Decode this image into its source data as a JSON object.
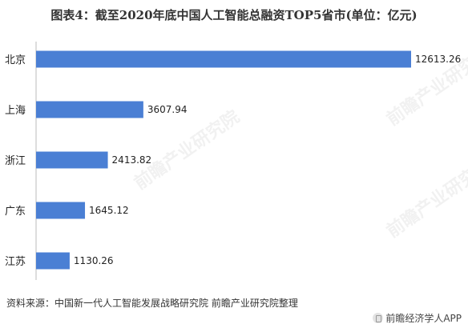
{
  "title": "图表4：截至2020年底中国人工智能总融资TOP5省市(单位：亿元)",
  "source": "资料来源：中国新一代人工智能发展战略研究院 前瞻产业研究院整理",
  "brand": "前瞻经济学人APP",
  "watermark": "前瞻产业研究院",
  "colors": {
    "bar": "#4a7fd4",
    "axis": "#bbbbbb"
  },
  "chart_data": {
    "type": "bar",
    "orientation": "horizontal",
    "categories": [
      "北京",
      "上海",
      "浙江",
      "广东",
      "江苏"
    ],
    "values": [
      12613.26,
      3607.94,
      2413.82,
      1645.12,
      1130.26
    ],
    "value_labels": [
      "12613.26",
      "3607.94",
      "2413.82",
      "1645.12",
      "1130.26"
    ],
    "xlim": [
      0,
      12613.26
    ],
    "grid": false
  }
}
